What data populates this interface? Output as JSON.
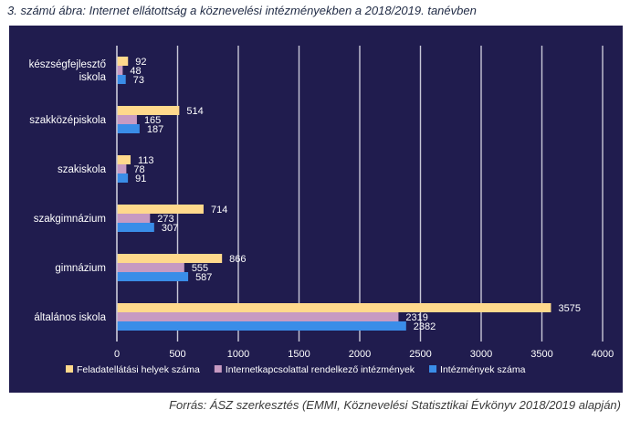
{
  "figure": {
    "title": "3. számú ábra: Internet ellátottság a köznevelési intézményekben a 2018/2019. tanévben",
    "source": "Forrás: ÁSZ szerkesztés (EMMI, Köznevelési Statisztikai Évkönyv 2018/2019 alapján)"
  },
  "colors": {
    "background": "#201c4e",
    "gridline": "#c8c8d8",
    "text": "#ffffff",
    "series": [
      "#ffd98c",
      "#c79ac2",
      "#3a8de8"
    ]
  },
  "chart_data": {
    "type": "bar",
    "orientation": "horizontal",
    "categories": [
      "készségfejlesztő iskola",
      "szakközépiskola",
      "szakiskola",
      "szakgimnázium",
      "gimnázium",
      "általános iskola"
    ],
    "category_display": [
      [
        "készségfejlesztő",
        "iskola"
      ],
      [
        "szakközépiskola"
      ],
      [
        "szakiskola"
      ],
      [
        "szakgimnázium"
      ],
      [
        "gimnázium"
      ],
      [
        "általános iskola"
      ]
    ],
    "series": [
      {
        "name": "Feladatellátási helyek száma",
        "values": [
          92,
          514,
          113,
          714,
          866,
          3575
        ]
      },
      {
        "name": "Internetkapcsolattal rendelkező intézmények",
        "values": [
          48,
          165,
          78,
          273,
          555,
          2319
        ]
      },
      {
        "name": "Intézmények száma",
        "values": [
          73,
          187,
          91,
          307,
          587,
          2382
        ]
      }
    ],
    "xlim": [
      0,
      4000
    ],
    "xticks": [
      0,
      500,
      1000,
      1500,
      2000,
      2500,
      3000,
      3500,
      4000
    ],
    "grid": true,
    "legend": "bottom",
    "data_labels": true
  }
}
